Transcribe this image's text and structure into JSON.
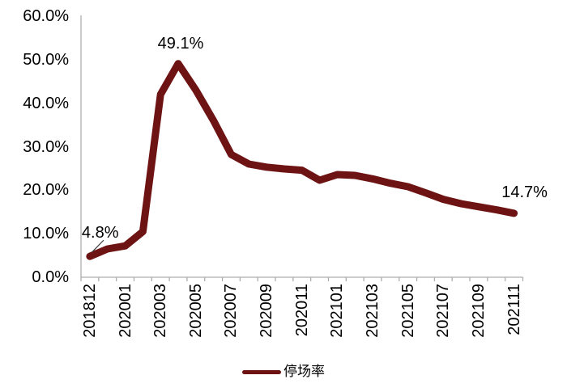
{
  "chart_data": {
    "type": "line",
    "title": "",
    "series_name": "停场率",
    "categories": [
      "201812",
      "201912",
      "202001",
      "202002",
      "202003",
      "202004",
      "202005",
      "202006",
      "202007",
      "202008",
      "202009",
      "202010",
      "202011",
      "202012",
      "202101",
      "202102",
      "202103",
      "202104",
      "202105",
      "202106",
      "202107",
      "202108",
      "202109",
      "202110",
      "202111"
    ],
    "values": [
      4.8,
      6.5,
      7.2,
      10.5,
      42.0,
      49.1,
      43.0,
      36.0,
      28.2,
      26.0,
      25.3,
      24.9,
      24.6,
      22.3,
      23.6,
      23.4,
      22.6,
      21.6,
      20.8,
      19.4,
      17.9,
      16.9,
      16.2,
      15.5,
      14.7
    ],
    "xtick_labels_shown": [
      "201812",
      "202001",
      "202003",
      "202005",
      "202007",
      "202009",
      "202011",
      "202101",
      "202103",
      "202105",
      "202107",
      "202109",
      "202111"
    ],
    "xtick_label_every": 2,
    "ylim": [
      0,
      60
    ],
    "ytick_labels": [
      "0.0%",
      "10.0%",
      "20.0%",
      "30.0%",
      "40.0%",
      "50.0%",
      "60.0%"
    ],
    "grid": false,
    "legend_position": "bottom-center",
    "annotations": [
      {
        "index": 0,
        "text": "4.8%",
        "leader": true
      },
      {
        "index": 5,
        "text": "49.1%",
        "leader": false
      },
      {
        "index": 24,
        "text": "14.7%",
        "leader": false
      }
    ],
    "colors": {
      "line": "#6E1313",
      "axis": "#ADADAD",
      "text": "#000000",
      "leader": "#3a3a3a"
    }
  }
}
